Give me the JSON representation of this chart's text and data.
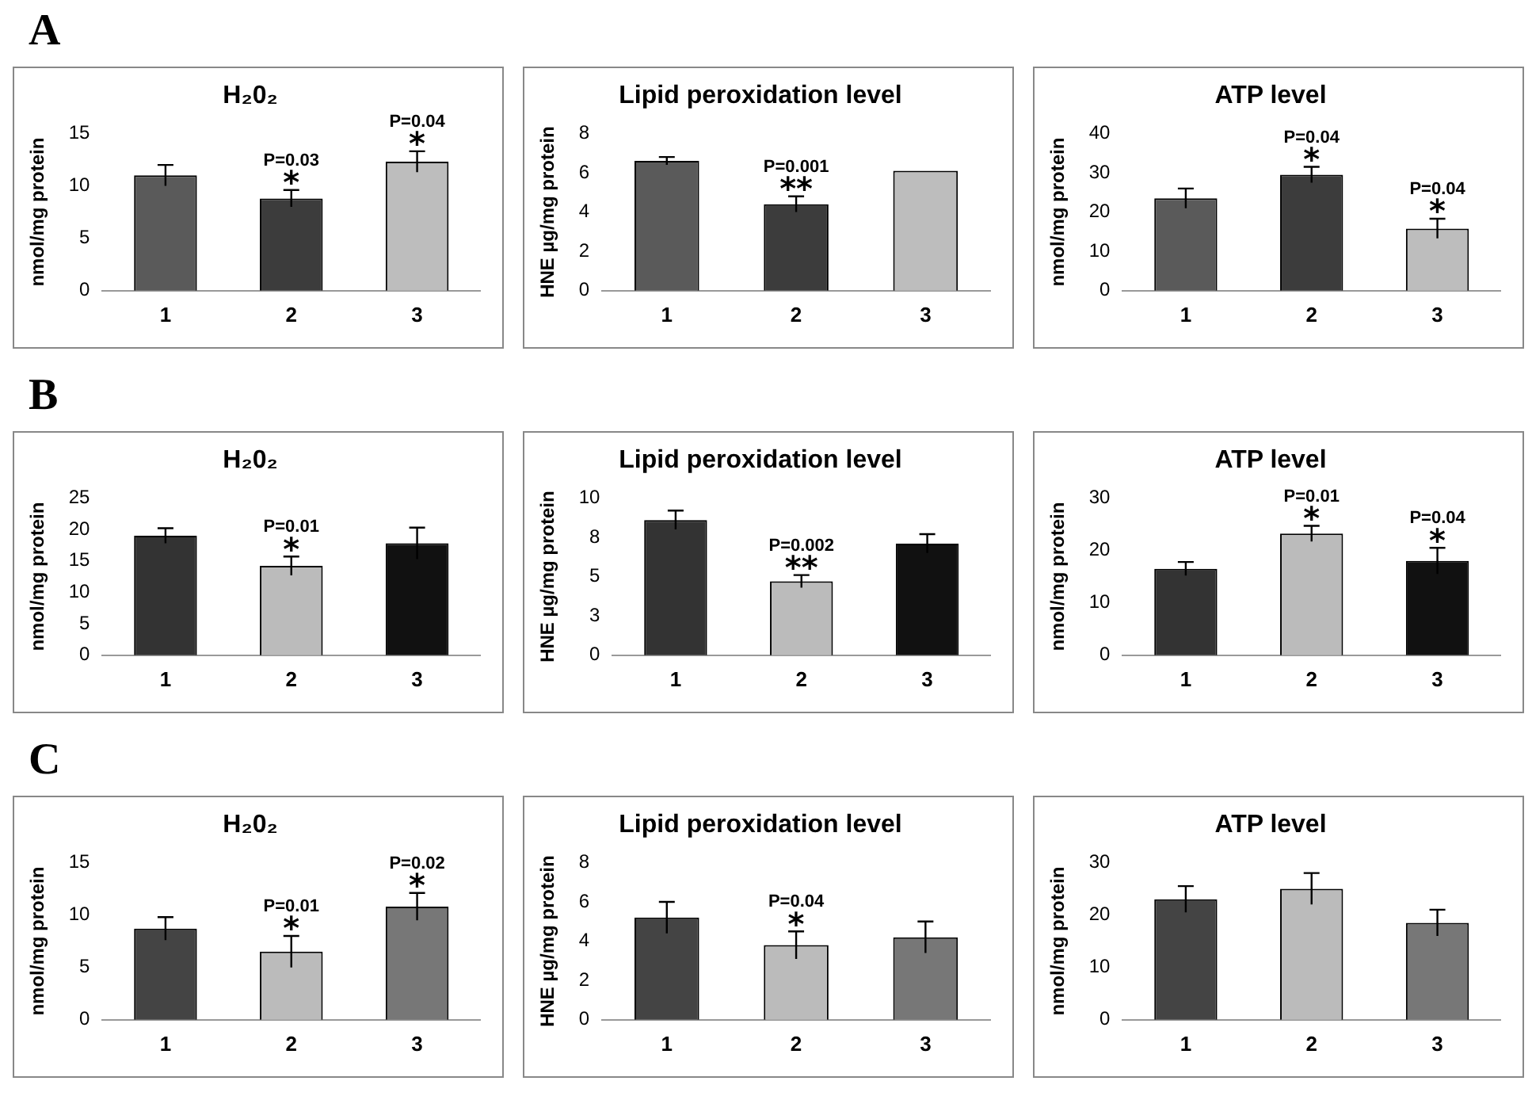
{
  "chart_data": [
    {
      "type": "bar",
      "title": "H₂0₂",
      "ylabel": "nmol/mg protein",
      "categories": [
        "1",
        "2",
        "3"
      ],
      "values": [
        11,
        8.8,
        12.3
      ],
      "errors": [
        1,
        0.8,
        1
      ],
      "colors": [
        "#5a5a5a",
        "#3c3c3c",
        "#bdbdbd"
      ],
      "ylim": [
        0,
        15
      ],
      "yticks": [
        0,
        5,
        10,
        15
      ],
      "grid": false,
      "legend": false,
      "annotations": [
        "A",
        {
          "text": "*",
          "x": "2",
          "y": 8.8
        },
        {
          "text": "P=0.03",
          "x": "2",
          "y": 8.8
        },
        {
          "text": "*",
          "x": "3",
          "y": 12.3
        },
        {
          "text": "P=0.04",
          "x": "3",
          "y": 12.3
        }
      ]
    },
    {
      "type": "bar",
      "title": "Lipid peroxidation level",
      "ylabel": "HNE µg/mg protein",
      "categories": [
        "1",
        "2",
        "3"
      ],
      "values": [
        6.6,
        4.4,
        6.1
      ],
      "errors": [
        0.2,
        0.4,
        null
      ],
      "colors": [
        "#5a5a5a",
        "#3c3c3c",
        "#bdbdbd"
      ],
      "ylim": [
        0,
        8
      ],
      "yticks": [
        0,
        2,
        4,
        6,
        8
      ],
      "grid": false,
      "legend": false,
      "annotations": [
        {
          "text": "**",
          "x": "2",
          "y": 4.4
        },
        {
          "text": "P=0.001",
          "x": "2",
          "y": 4.4
        }
      ]
    },
    {
      "type": "bar",
      "title": "ATP level",
      "ylabel": "nmol/mg protein",
      "categories": [
        "1",
        "2",
        "3"
      ],
      "values": [
        23.5,
        29.5,
        15.8
      ],
      "errors": [
        2.5,
        2,
        2.5
      ],
      "colors": [
        "#5a5a5a",
        "#3c3c3c",
        "#bdbdbd"
      ],
      "ylim": [
        0,
        40
      ],
      "yticks": [
        0,
        10,
        20,
        30,
        40
      ],
      "grid": false,
      "legend": false,
      "annotations": [
        {
          "text": "*",
          "x": "2",
          "y": 29.5
        },
        {
          "text": "P=0.04",
          "x": "2",
          "y": 29.5
        },
        {
          "text": "*",
          "x": "3",
          "y": 15.8
        },
        {
          "text": "P=0.04",
          "x": "3",
          "y": 15.8
        }
      ]
    },
    {
      "type": "bar",
      "title": "H₂0₂",
      "ylabel": "nmol/mg protein",
      "categories": [
        "1",
        "2",
        "3"
      ],
      "values": [
        19,
        14.2,
        17.8
      ],
      "errors": [
        1.2,
        1.5,
        2.5
      ],
      "colors": [
        "#333333",
        "#bbbbbb",
        "#111111"
      ],
      "ylim": [
        0,
        25
      ],
      "yticks": [
        0,
        5,
        10,
        15,
        20,
        25
      ],
      "grid": false,
      "legend": false,
      "annotations": [
        "B",
        {
          "text": "*",
          "x": "2",
          "y": 14.2
        },
        {
          "text": "P=0.01",
          "x": "2",
          "y": 14.2
        }
      ]
    },
    {
      "type": "bar",
      "title": "Lipid peroxidation level",
      "ylabel": "HNE µg/mg protein",
      "categories": [
        "1",
        "2",
        "3"
      ],
      "values": [
        8.6,
        4.7,
        7.1
      ],
      "errors": [
        0.6,
        0.4,
        0.6
      ],
      "colors": [
        "#333333",
        "#bbbbbb",
        "#111111"
      ],
      "ylim": [
        0,
        10
      ],
      "yticks": [
        0,
        {
          "value": 2.5,
          "label": "3"
        },
        5,
        {
          "value": 7.5,
          "label": "8"
        },
        10
      ],
      "grid": false,
      "legend": false,
      "annotations": [
        {
          "text": "**",
          "x": "2",
          "y": 4.7
        },
        {
          "text": "P=0.002",
          "x": "2",
          "y": 4.7
        }
      ]
    },
    {
      "type": "bar",
      "title": "ATP level",
      "ylabel": "nmol/mg protein",
      "categories": [
        "1",
        "2",
        "3"
      ],
      "values": [
        16.5,
        23.2,
        18
      ],
      "errors": [
        1.3,
        1.5,
        2.5
      ],
      "colors": [
        "#333333",
        "#bbbbbb",
        "#111111"
      ],
      "ylim": [
        0,
        30
      ],
      "yticks": [
        0,
        10,
        20,
        30
      ],
      "grid": false,
      "legend": false,
      "annotations": [
        {
          "text": "*",
          "x": "2",
          "y": 23.2
        },
        {
          "text": "P=0.01",
          "x": "2",
          "y": 23.2
        },
        {
          "text": "*",
          "x": "3",
          "y": 18
        },
        {
          "text": "P=0.04",
          "x": "3",
          "y": 18
        }
      ]
    },
    {
      "type": "bar",
      "title": "H₂0₂",
      "ylabel": "nmol/mg protein",
      "categories": [
        "1",
        "2",
        "3"
      ],
      "values": [
        8.7,
        6.5,
        10.8
      ],
      "errors": [
        1.1,
        1.5,
        1.3
      ],
      "colors": [
        "#444444",
        "#bbbbbb",
        "#777777"
      ],
      "ylim": [
        0,
        15
      ],
      "yticks": [
        0,
        5,
        10,
        15
      ],
      "grid": false,
      "legend": false,
      "annotations": [
        "C",
        {
          "text": "*",
          "x": "2",
          "y": 6.5
        },
        {
          "text": "P=0.01",
          "x": "2",
          "y": 6.5
        },
        {
          "text": "*",
          "x": "3",
          "y": 10.8
        },
        {
          "text": "P=0.02",
          "x": "3",
          "y": 10.8
        }
      ]
    },
    {
      "type": "bar",
      "title": "Lipid peroxidation level",
      "ylabel": "HNE µg/mg protein",
      "categories": [
        "1",
        "2",
        "3"
      ],
      "values": [
        5.2,
        3.8,
        4.2
      ],
      "errors": [
        0.8,
        0.7,
        0.8
      ],
      "colors": [
        "#444444",
        "#bbbbbb",
        "#777777"
      ],
      "ylim": [
        0,
        8
      ],
      "yticks": [
        0,
        2,
        4,
        6,
        8
      ],
      "grid": false,
      "legend": false,
      "annotations": [
        {
          "text": "*",
          "x": "2",
          "y": 3.8
        },
        {
          "text": "P=0.04",
          "x": "2",
          "y": 3.8
        }
      ]
    },
    {
      "type": "bar",
      "title": "ATP level",
      "ylabel": "nmol/mg protein",
      "categories": [
        "1",
        "2",
        "3"
      ],
      "values": [
        23,
        25,
        18.5
      ],
      "errors": [
        2.5,
        3,
        2.5
      ],
      "colors": [
        "#444444",
        "#bbbbbb",
        "#777777"
      ],
      "ylim": [
        0,
        30
      ],
      "yticks": [
        0,
        10,
        20,
        30
      ],
      "grid": false,
      "legend": false
    }
  ]
}
